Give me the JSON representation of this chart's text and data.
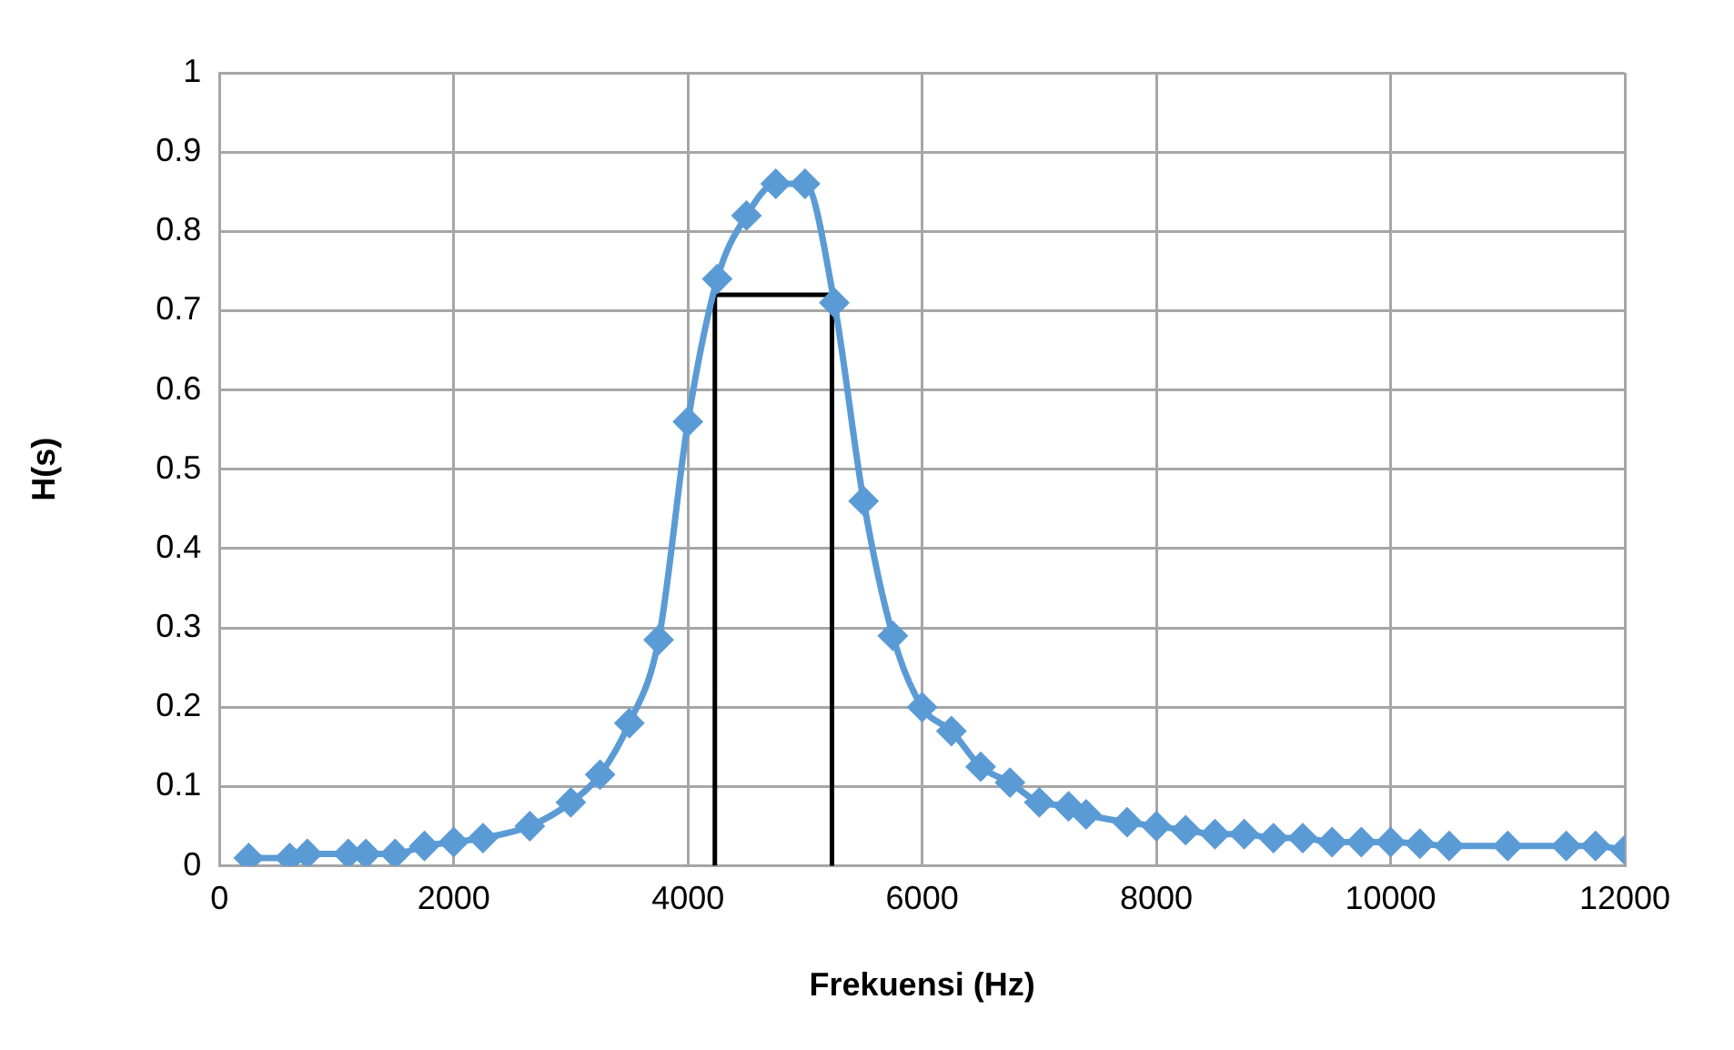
{
  "chart_data": {
    "type": "line",
    "xlabel": "Frekuensi (Hz)",
    "ylabel": "H(s)",
    "xlim": [
      0,
      12000
    ],
    "xticks": [
      0,
      2000,
      4000,
      6000,
      8000,
      10000,
      12000
    ],
    "ylim": [
      0,
      1
    ],
    "yticks": [
      0,
      0.1,
      0.2,
      0.3,
      0.4,
      0.5,
      0.6,
      0.7,
      0.8,
      0.9,
      1
    ],
    "grid": true,
    "legend": false,
    "series": [
      {
        "type": "line",
        "color": "#5b9bd5",
        "marker": "diamond",
        "line_style": "solid",
        "x": [
          250,
          600,
          750,
          1100,
          1250,
          1500,
          1750,
          2000,
          2250,
          2650,
          3000,
          3250,
          3500,
          3750,
          4000,
          4250,
          4500,
          4750,
          5000,
          5250,
          5500,
          5750,
          6000,
          6250,
          6500,
          6750,
          7000,
          7250,
          7400,
          7750,
          8000,
          8250,
          8500,
          8750,
          9000,
          9250,
          9500,
          9750,
          10000,
          10250,
          10500,
          11000,
          11500,
          11750,
          12000
        ],
        "values": [
          0.01,
          0.01,
          0.015,
          0.015,
          0.015,
          0.015,
          0.025,
          0.03,
          0.035,
          0.05,
          0.08,
          0.115,
          0.18,
          0.285,
          0.56,
          0.74,
          0.82,
          0.86,
          0.86,
          0.71,
          0.46,
          0.29,
          0.2,
          0.17,
          0.125,
          0.105,
          0.08,
          0.075,
          0.065,
          0.055,
          0.05,
          0.045,
          0.04,
          0.04,
          0.035,
          0.035,
          0.03,
          0.03,
          0.03,
          0.028,
          0.025,
          0.025,
          0.025,
          0.025,
          0.02
        ]
      },
      {
        "type": "line",
        "color": "#000000",
        "marker": "none",
        "line_style": "solid",
        "x": [
          4230,
          4230,
          5230,
          5230
        ],
        "values": [
          0,
          0.72,
          0.72,
          0
        ]
      }
    ]
  }
}
